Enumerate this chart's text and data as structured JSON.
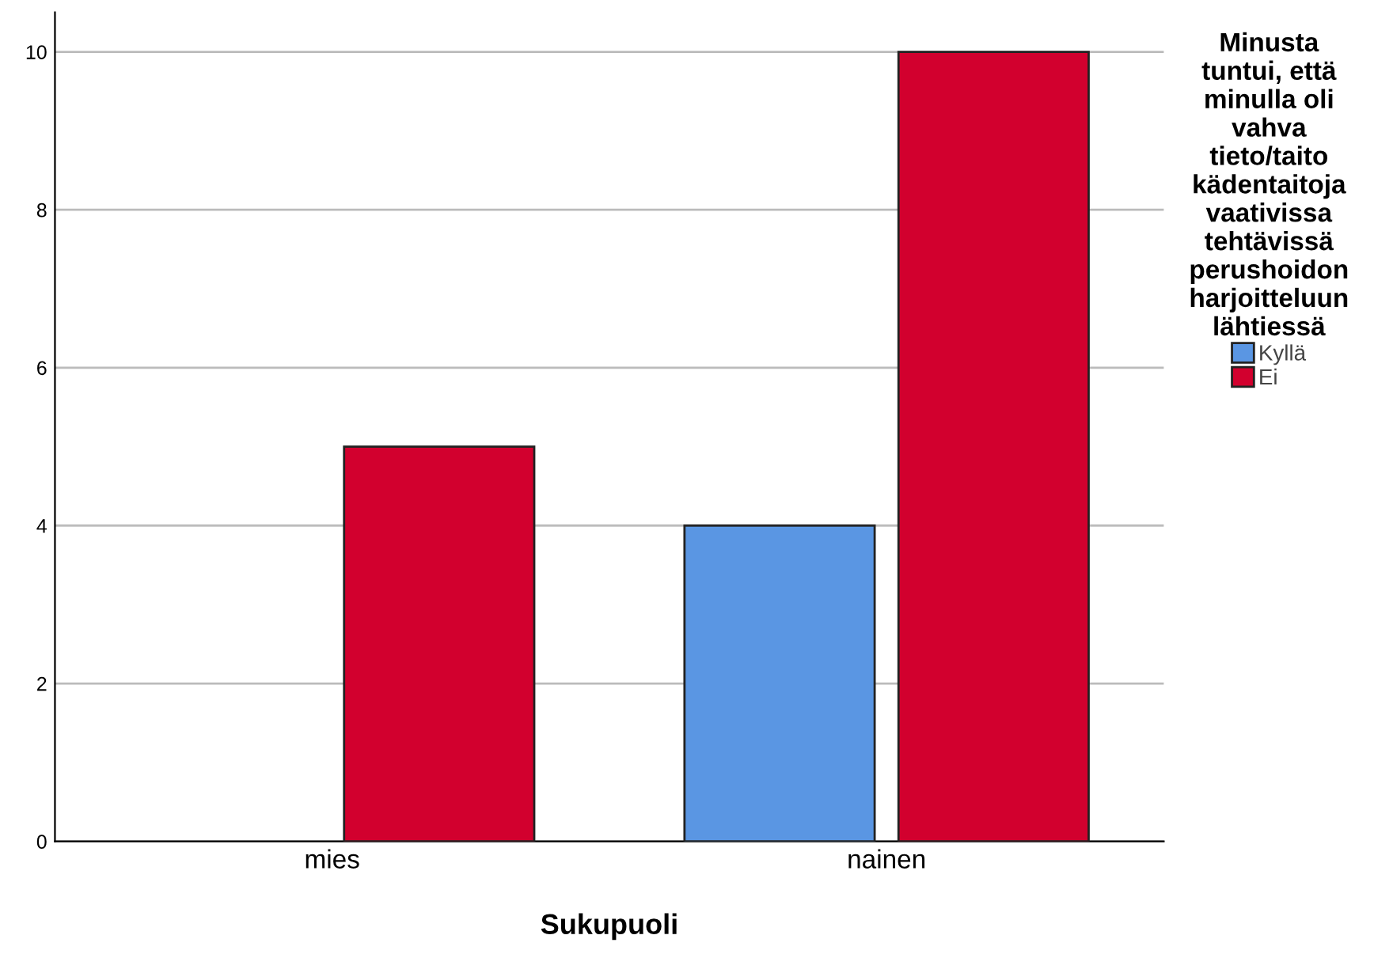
{
  "chart_data": {
    "type": "bar",
    "xlabel": "Sukupuoli",
    "categories": [
      "mies",
      "nainen"
    ],
    "series": [
      {
        "name": "Kyllä",
        "color": "#5a96e3",
        "values": [
          null,
          4
        ]
      },
      {
        "name": "Ei",
        "color": "#d2002e",
        "values": [
          5,
          10
        ]
      }
    ],
    "legend_title": "Minusta\ntuntui, että\nminulla oli\nvahva\ntieto/taito\nkädentaitoja\nvaativissa\ntehtävissä\nperushoidon\nharjoitteluun\nlähtiessä",
    "ylim": [
      0,
      10.5
    ],
    "yticks": [
      0,
      2,
      4,
      6,
      8,
      10
    ],
    "grid": "y",
    "legend": "right"
  }
}
